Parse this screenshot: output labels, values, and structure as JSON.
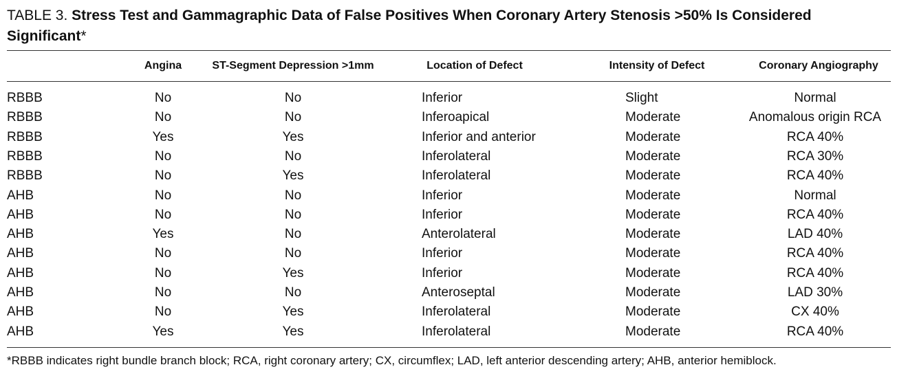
{
  "table": {
    "label": "TABLE 3.",
    "title": "Stress Test and Gammagraphic Data of False Positives When Coronary Artery Stenosis >50% Is Considered Significant",
    "title_mark": "*",
    "headers": [
      "Angina",
      "ST-Segment Depression >1mm",
      "Location of Defect",
      "Intensity of Defect",
      "Coronary Angiography"
    ],
    "rows": [
      [
        "RBBB",
        "No",
        "No",
        "Inferior",
        "Slight",
        "Normal"
      ],
      [
        "RBBB",
        "No",
        "No",
        "Inferoapical",
        "Moderate",
        "Anomalous origin RCA"
      ],
      [
        "RBBB",
        "Yes",
        "Yes",
        "Inferior and anterior",
        "Moderate",
        "RCA 40%"
      ],
      [
        "RBBB",
        "No",
        "No",
        "Inferolateral",
        "Moderate",
        "RCA 30%"
      ],
      [
        "RBBB",
        "No",
        "Yes",
        "Inferolateral",
        "Moderate",
        "RCA 40%"
      ],
      [
        "AHB",
        "No",
        "No",
        "Inferior",
        "Moderate",
        "Normal"
      ],
      [
        "AHB",
        "No",
        "No",
        "Inferior",
        "Moderate",
        "RCA 40%"
      ],
      [
        "AHB",
        "Yes",
        "No",
        "Anterolateral",
        "Moderate",
        "LAD 40%"
      ],
      [
        "AHB",
        "No",
        "No",
        "Inferior",
        "Moderate",
        "RCA 40%"
      ],
      [
        "AHB",
        "No",
        "Yes",
        "Inferior",
        "Moderate",
        "RCA 40%"
      ],
      [
        "AHB",
        "No",
        "No",
        "Anteroseptal",
        "Moderate",
        "LAD 30%"
      ],
      [
        "AHB",
        "No",
        "Yes",
        "Inferolateral",
        "Moderate",
        "CX 40%"
      ],
      [
        "AHB",
        "Yes",
        "Yes",
        "Inferolateral",
        "Moderate",
        "RCA 40%"
      ]
    ],
    "footnote": "*RBBB indicates right bundle branch block; RCA, right coronary artery; CX, circumflex; LAD, left anterior descending artery; AHB, anterior hemiblock."
  }
}
